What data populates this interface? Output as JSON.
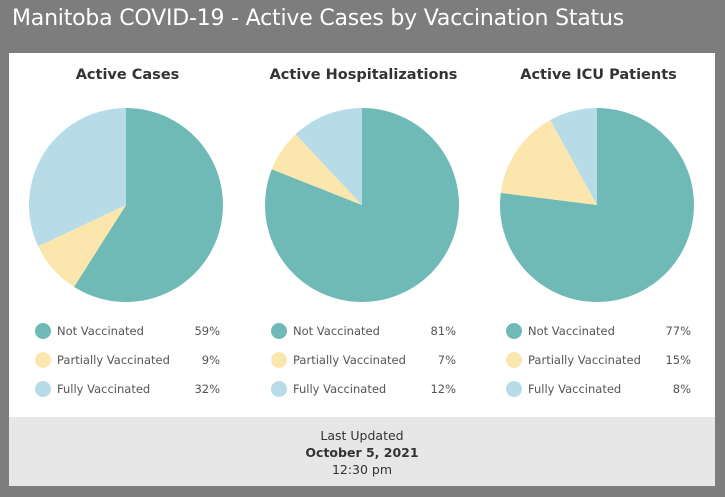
{
  "page": {
    "title": "Manitoba COVID-19 - Active Cases by Vaccination Status"
  },
  "colors": {
    "not_vaccinated": "#6fbab7",
    "partially_vaccinated": "#fbe7ae",
    "fully_vaccinated": "#b7dbe7"
  },
  "chart_data": [
    {
      "type": "pie",
      "title": "Active Cases",
      "series": [
        {
          "name": "Not Vaccinated",
          "value": 59,
          "label": "59%"
        },
        {
          "name": "Partially Vaccinated",
          "value": 9,
          "label": "9%"
        },
        {
          "name": "Fully Vaccinated",
          "value": 32,
          "label": "32%"
        }
      ]
    },
    {
      "type": "pie",
      "title": "Active Hospitalizations",
      "series": [
        {
          "name": "Not Vaccinated",
          "value": 81,
          "label": "81%"
        },
        {
          "name": "Partially Vaccinated",
          "value": 7,
          "label": "7%"
        },
        {
          "name": "Fully Vaccinated",
          "value": 12,
          "label": "12%"
        }
      ]
    },
    {
      "type": "pie",
      "title": "Active ICU Patients",
      "series": [
        {
          "name": "Not Vaccinated",
          "value": 77,
          "label": "77%"
        },
        {
          "name": "Partially Vaccinated",
          "value": 15,
          "label": "15%"
        },
        {
          "name": "Fully Vaccinated",
          "value": 8,
          "label": "8%"
        }
      ]
    }
  ],
  "footer": {
    "label": "Last Updated",
    "date": "October 5, 2021",
    "time": "12:30 pm"
  }
}
